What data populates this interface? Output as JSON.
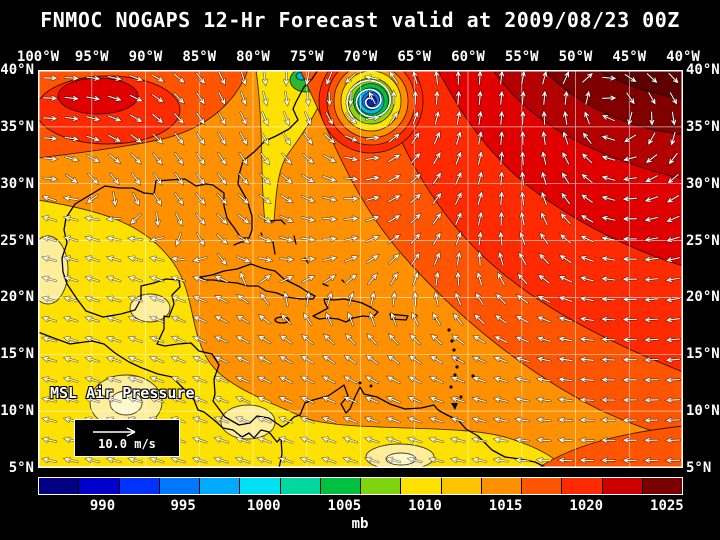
{
  "title": "FNMOC NOGAPS 12-Hr Forecast valid at 2009/08/23 00Z",
  "map": {
    "lon_labels": [
      "100°W",
      "95°W",
      "90°W",
      "85°W",
      "80°W",
      "75°W",
      "70°W",
      "65°W",
      "60°W",
      "55°W",
      "50°W",
      "45°W",
      "40°W"
    ],
    "lat_labels": [
      "40°N",
      "35°N",
      "30°N",
      "25°N",
      "20°N",
      "15°N",
      "10°N",
      "5°N"
    ],
    "field_label": "MSL Air Pressure",
    "wind_legend_label": "10.0 m/s"
  },
  "colorbar": {
    "unit": "mb",
    "tick_labels": [
      "990",
      "995",
      "1000",
      "1005",
      "1010",
      "1015",
      "1020",
      "1025"
    ],
    "range_mb": [
      986,
      1026
    ],
    "segment_colors": [
      "#000080",
      "#0000cc",
      "#0033ff",
      "#0077ff",
      "#00aaff",
      "#00e0f0",
      "#00d8a0",
      "#00c040",
      "#7fd410",
      "#ffe100",
      "#ffc400",
      "#ff9100",
      "#ff5500",
      "#ff2a00",
      "#cc0000",
      "#7a0000"
    ]
  },
  "colors": {
    "background": "#000000",
    "text": "#ffffff",
    "hurricane_eye": "#0a2a99"
  }
}
